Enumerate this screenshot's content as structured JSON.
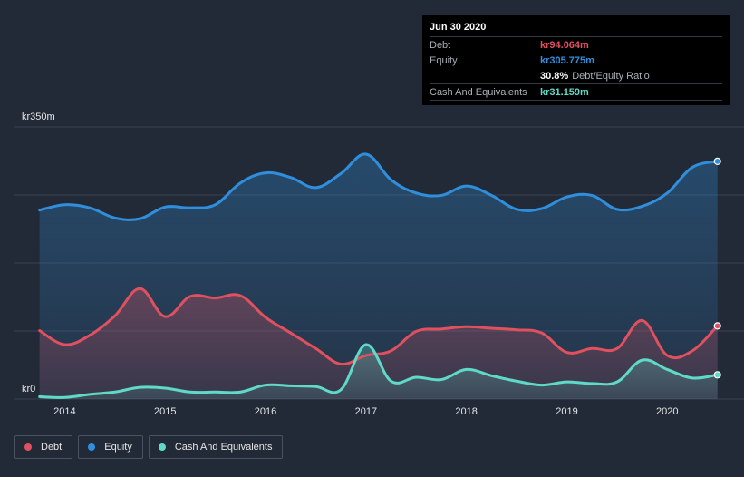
{
  "colors": {
    "debt": "#e0505e",
    "equity": "#2f8fdc",
    "cash": "#5fd9c8",
    "background": "#232a37",
    "gridline": "#3a4150"
  },
  "tooltip": {
    "date": "Jun 30 2020",
    "rows": [
      {
        "key": "Debt",
        "value": "kr94.064m",
        "color": "#e0505e",
        "extra": ""
      },
      {
        "key": "Equity",
        "value": "kr305.775m",
        "color": "#2f8fdc",
        "extra": ""
      },
      {
        "key": "",
        "value": "30.8%",
        "color": "#ffffff",
        "extra": "Debt/Equity Ratio"
      },
      {
        "key": "Cash And Equivalents",
        "value": "kr31.159m",
        "color": "#5fd9c8",
        "extra": ""
      }
    ]
  },
  "legend": [
    {
      "label": "Debt",
      "color": "#e0505e"
    },
    {
      "label": "Equity",
      "color": "#2f8fdc"
    },
    {
      "label": "Cash And Equivalents",
      "color": "#5fd9c8"
    }
  ],
  "chart_data": {
    "type": "area",
    "title": "",
    "xlabel": "",
    "ylabel": "",
    "ylim": [
      0,
      350
    ],
    "y_tick_labels": [
      {
        "value": 350,
        "label": "kr350m"
      },
      {
        "value": 0,
        "label": "kr0"
      }
    ],
    "x_ticks": [
      2014,
      2015,
      2016,
      2017,
      2018,
      2019,
      2020
    ],
    "xlim": [
      2013.5,
      2020.62
    ],
    "highlight_x": 2020.5,
    "series": [
      {
        "name": "Equity",
        "color": "#2f8fdc",
        "points": [
          [
            2013.75,
            243
          ],
          [
            2014.0,
            250
          ],
          [
            2014.25,
            246
          ],
          [
            2014.5,
            233
          ],
          [
            2014.75,
            232
          ],
          [
            2015.0,
            247
          ],
          [
            2015.25,
            246
          ],
          [
            2015.5,
            250
          ],
          [
            2015.75,
            278
          ],
          [
            2016.0,
            291
          ],
          [
            2016.25,
            285
          ],
          [
            2016.5,
            272
          ],
          [
            2016.75,
            290
          ],
          [
            2017.0,
            315
          ],
          [
            2017.25,
            282
          ],
          [
            2017.5,
            265
          ],
          [
            2017.75,
            262
          ],
          [
            2018.0,
            274
          ],
          [
            2018.25,
            262
          ],
          [
            2018.5,
            244
          ],
          [
            2018.75,
            245
          ],
          [
            2019.0,
            260
          ],
          [
            2019.25,
            262
          ],
          [
            2019.5,
            244
          ],
          [
            2019.75,
            248
          ],
          [
            2020.0,
            265
          ],
          [
            2020.25,
            298
          ],
          [
            2020.5,
            305.775
          ]
        ]
      },
      {
        "name": "Debt",
        "color": "#e0505e",
        "points": [
          [
            2013.75,
            88
          ],
          [
            2014.0,
            70
          ],
          [
            2014.25,
            82
          ],
          [
            2014.5,
            107
          ],
          [
            2014.75,
            142
          ],
          [
            2015.0,
            106
          ],
          [
            2015.25,
            132
          ],
          [
            2015.5,
            130
          ],
          [
            2015.75,
            133
          ],
          [
            2016.0,
            105
          ],
          [
            2016.25,
            85
          ],
          [
            2016.5,
            65
          ],
          [
            2016.75,
            45
          ],
          [
            2017.0,
            56
          ],
          [
            2017.25,
            62
          ],
          [
            2017.5,
            87
          ],
          [
            2017.75,
            90
          ],
          [
            2018.0,
            93
          ],
          [
            2018.25,
            91
          ],
          [
            2018.5,
            89
          ],
          [
            2018.75,
            85
          ],
          [
            2019.0,
            60
          ],
          [
            2019.25,
            65
          ],
          [
            2019.5,
            65
          ],
          [
            2019.75,
            101
          ],
          [
            2020.0,
            56
          ],
          [
            2020.25,
            62
          ],
          [
            2020.5,
            94.064
          ]
        ]
      },
      {
        "name": "Cash And Equivalents",
        "color": "#5fd9c8",
        "points": [
          [
            2013.75,
            3
          ],
          [
            2014.0,
            2
          ],
          [
            2014.25,
            6
          ],
          [
            2014.5,
            9
          ],
          [
            2014.75,
            15
          ],
          [
            2015.0,
            14
          ],
          [
            2015.25,
            9
          ],
          [
            2015.5,
            9
          ],
          [
            2015.75,
            9
          ],
          [
            2016.0,
            18
          ],
          [
            2016.25,
            17
          ],
          [
            2016.5,
            16
          ],
          [
            2016.75,
            12
          ],
          [
            2017.0,
            70
          ],
          [
            2017.25,
            23
          ],
          [
            2017.5,
            28
          ],
          [
            2017.75,
            25
          ],
          [
            2018.0,
            38
          ],
          [
            2018.25,
            30
          ],
          [
            2018.5,
            23
          ],
          [
            2018.75,
            18
          ],
          [
            2019.0,
            22
          ],
          [
            2019.25,
            20
          ],
          [
            2019.5,
            22
          ],
          [
            2019.75,
            50
          ],
          [
            2020.0,
            38
          ],
          [
            2020.25,
            27
          ],
          [
            2020.5,
            31.159
          ]
        ]
      }
    ]
  }
}
